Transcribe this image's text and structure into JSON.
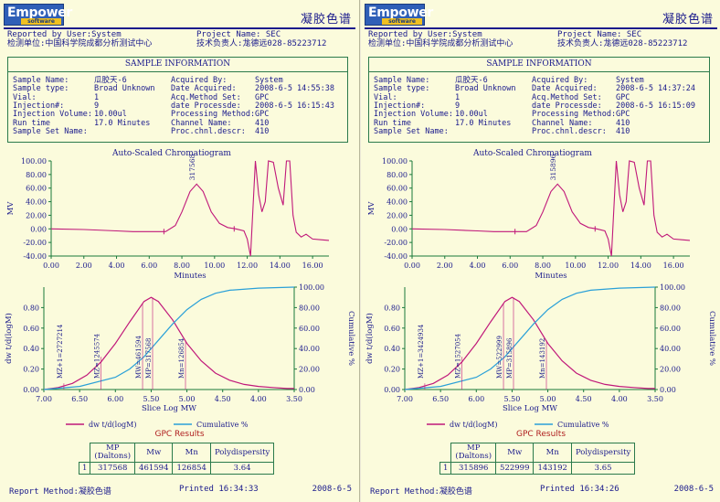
{
  "pages": [
    {
      "logo": {
        "word": "Empower",
        "sub": "software"
      },
      "doc_title": "凝胶色谱",
      "header": {
        "reported_by": "Reported by User:System",
        "project": "Project Name: SEC",
        "unit": "检测单位:中国科学院成都分析测试中心",
        "contact": "技术负责人:尨德远028-85223712"
      },
      "info_title": "SAMPLE INFORMATION",
      "info_left": [
        [
          "Sample Name:",
          "瓜胶天-6"
        ],
        [
          "Sample type:",
          "Broad Unknown"
        ],
        [
          "Vial:",
          "1"
        ],
        [
          "Injection#:",
          "9"
        ],
        [
          "Injection Volume:",
          "10.00ul"
        ],
        [
          "Run time",
          "17.0 Minutes"
        ],
        [
          "Sample Set Name:",
          ""
        ]
      ],
      "info_right": [
        [
          "Acquired By:",
          "System"
        ],
        [
          "Date Acquired:",
          "2008-6-5 14:55:38"
        ],
        [
          "Acq.Method Set:",
          "GPC"
        ],
        [
          "date Processde:",
          "2008-6-5 16:15:43"
        ],
        [
          "Processing Method:",
          "GPC"
        ],
        [
          "Channel Name:",
          "410"
        ],
        [
          "Proc.chnl.descr:",
          "410"
        ]
      ],
      "chromatogram_title": "Auto-Scaled Chromatiogram",
      "peak_label": "317568",
      "mw_labels": [
        "MZ+1=2727214",
        "MZ=1245574",
        "MW=461594",
        "MP=317568",
        "Mn=126854"
      ],
      "legend": {
        "dw": "dw t/d(logM)",
        "cum": "Cumulative %"
      },
      "gpc": {
        "title": "GPC Results",
        "headers": [
          "MP\n(Daltons)",
          "Mw",
          "Mn",
          "Polydispersity"
        ],
        "row": [
          "1",
          "317568",
          "461594",
          "126854",
          "3.64"
        ]
      },
      "footer": {
        "method": "Report Method:凝胶色谱",
        "printed": "Printed 16:34:33",
        "date": "2008-6-5"
      }
    },
    {
      "logo": {
        "word": "Empower",
        "sub": "software"
      },
      "doc_title": "凝胶色谱",
      "header": {
        "reported_by": "Reported by User:System",
        "project": "Project Name: SEC",
        "unit": "检测单位:中国科学院成都分析测试中心",
        "contact": "技术负责人:尨德远028-85223712"
      },
      "info_title": "SAMPLE INFORMATION",
      "info_left": [
        [
          "Sample Name:",
          "瓜胶天-6"
        ],
        [
          "Sample type:",
          "Broad Unknown"
        ],
        [
          "Vial:",
          "1"
        ],
        [
          "Injection#:",
          "9"
        ],
        [
          "Injection Volume:",
          "10.00ul"
        ],
        [
          "Run time",
          "17.0 Minutes"
        ],
        [
          "Sample Set Name:",
          ""
        ]
      ],
      "info_right": [
        [
          "Acquired By:",
          "System"
        ],
        [
          "Date Acquired:",
          "2008-6-5 14:37:24"
        ],
        [
          "Acq.Method Set:",
          "GPC"
        ],
        [
          "date Processde:",
          "2008-6-5 16:15:09"
        ],
        [
          "Processing Method:",
          "GPC"
        ],
        [
          "Channel Name:",
          "410"
        ],
        [
          "Proc.chnl.descr:",
          "410"
        ]
      ],
      "chromatogram_title": "Auto-Scaled Chromatiogram",
      "peak_label": "315896",
      "mw_labels": [
        "MZ+1=3424934",
        "MZ=1527054",
        "MW=522999",
        "MP=315896",
        "Mn=143192"
      ],
      "legend": {
        "dw": "dw t/d(logM)",
        "cum": "Cumulative %"
      },
      "gpc": {
        "title": "GPC Results",
        "headers": [
          "MP\n(Daltons)",
          "Mw",
          "Mn",
          "Polydispersity"
        ],
        "row": [
          "1",
          "315896",
          "522999",
          "143192",
          "3.65"
        ]
      },
      "footer": {
        "method": "Report Method:凝胶色谱",
        "printed": "Printed 16:34:26",
        "date": "2008-6-5"
      }
    }
  ],
  "chart_data": [
    {
      "type": "line",
      "title": "Auto-Scaled Chromatiogram",
      "xlabel": "Minutes",
      "ylabel": "MV",
      "xlim": [
        0,
        17
      ],
      "ylim": [
        -40,
        100
      ],
      "xticks": [
        "0.00",
        "2.00",
        "4.00",
        "6.00",
        "8.00",
        "10.00",
        "12.00",
        "14.00",
        "16.00"
      ],
      "yticks": [
        "100.00",
        "80.00",
        "60.00",
        "40.00",
        "20.00",
        "0.00",
        "-20.00",
        "-40.00"
      ],
      "series": [
        {
          "x": [
            0,
            2,
            4,
            5,
            6,
            7,
            7.6,
            8.0,
            8.5,
            8.9,
            9.3,
            9.8,
            10.3,
            10.8,
            11.3,
            11.8,
            12.0,
            12.2,
            12.5,
            12.7,
            12.9,
            13.1,
            13.3,
            13.6,
            13.9,
            14.2,
            14.4,
            14.6,
            14.8,
            15.0,
            15.3,
            15.6,
            16.0,
            16.5,
            17.0
          ],
          "y": [
            0,
            -1,
            -3,
            -4,
            -4,
            -4,
            5,
            25,
            55,
            66,
            55,
            25,
            8,
            2,
            0,
            -3,
            -15,
            -40,
            100,
            50,
            25,
            40,
            100,
            98,
            60,
            35,
            100,
            100,
            20,
            -5,
            -12,
            -8,
            -15,
            -16,
            -17
          ]
        }
      ]
    },
    {
      "type": "line",
      "title": "",
      "xlabel": "Slice Log MW",
      "ylabel": "dw t/d(logM)",
      "y2label": "Cumulative %",
      "xlim": [
        7,
        3.5
      ],
      "ylim": [
        0,
        1.0
      ],
      "y2lim": [
        0,
        100
      ],
      "xticks": [
        "7.00",
        "6.50",
        "6.00",
        "5.50",
        "5.00",
        "4.50",
        "4.00",
        "3.50"
      ],
      "yticks": [
        "0.80",
        "0.60",
        "0.40",
        "0.20",
        "0.00"
      ],
      "y2ticks": [
        "100.00",
        "80.00",
        "60.00",
        "40.00",
        "20.00",
        "0.00"
      ],
      "series": [
        {
          "name": "dw t/d(logM)",
          "x": [
            7.0,
            6.8,
            6.6,
            6.4,
            6.2,
            6.0,
            5.8,
            5.6,
            5.5,
            5.4,
            5.2,
            5.0,
            4.8,
            4.6,
            4.4,
            4.2,
            4.0,
            3.8,
            3.6,
            3.5
          ],
          "y": [
            0.0,
            0.02,
            0.06,
            0.14,
            0.27,
            0.45,
            0.66,
            0.86,
            0.9,
            0.86,
            0.68,
            0.45,
            0.28,
            0.16,
            0.09,
            0.05,
            0.03,
            0.02,
            0.01,
            0.01
          ]
        },
        {
          "name": "Cumulative %",
          "x": [
            7.0,
            6.5,
            6.0,
            5.8,
            5.6,
            5.4,
            5.2,
            5.0,
            4.8,
            4.6,
            4.4,
            4.0,
            3.5
          ],
          "y": [
            0,
            3,
            12,
            20,
            32,
            48,
            64,
            78,
            88,
            94,
            97,
            99,
            100
          ]
        }
      ]
    }
  ]
}
